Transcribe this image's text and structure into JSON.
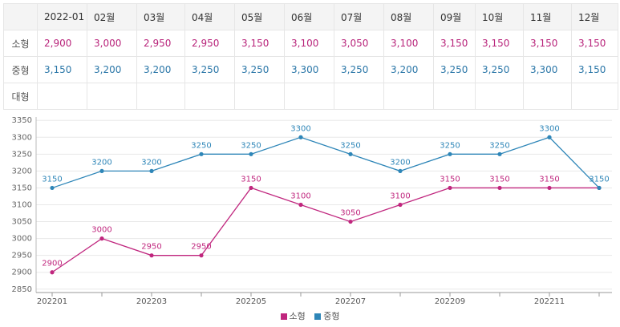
{
  "table": {
    "row_labels": [
      "소형",
      "중형",
      "대형"
    ],
    "left_months": [
      "2022-01",
      "02월",
      "03월",
      "04월"
    ],
    "right_months": [
      "05월",
      "06월",
      "07월",
      "08월",
      "09월",
      "10월",
      "11월",
      "12월"
    ],
    "small": [
      "2,900",
      "3,000",
      "2,950",
      "2,950",
      "3,150",
      "3,100",
      "3,050",
      "3,100",
      "3,150",
      "3,150",
      "3,150",
      "3,150"
    ],
    "medium": [
      "3,150",
      "3,200",
      "3,200",
      "3,250",
      "3,250",
      "3,300",
      "3,250",
      "3,200",
      "3,250",
      "3,250",
      "3,300",
      "3,150"
    ],
    "large": [
      "",
      "",
      "",
      "",
      "",
      "",
      "",
      "",
      "",
      "",
      "",
      ""
    ]
  },
  "chart_data": {
    "type": "line",
    "x": [
      "202201",
      "202202",
      "202203",
      "202204",
      "202205",
      "202206",
      "202207",
      "202208",
      "202209",
      "202210",
      "202211",
      "202212"
    ],
    "x_tick_labels": [
      "202201",
      "202203",
      "202205",
      "202207",
      "202209",
      "202211"
    ],
    "y_ticks": [
      2850,
      2900,
      2950,
      3000,
      3050,
      3100,
      3150,
      3200,
      3250,
      3300,
      3350
    ],
    "ylim": [
      2840,
      3360
    ],
    "grid": "horizontal",
    "legend_position": "bottom",
    "series": [
      {
        "name": "소형",
        "color": "#c0267e",
        "values": [
          2900,
          3000,
          2950,
          2950,
          3150,
          3100,
          3050,
          3100,
          3150,
          3150,
          3150,
          3150
        ],
        "labels": [
          "2900",
          "3000",
          "2950",
          "2950",
          "3150",
          "3100",
          "3050",
          "3100",
          "3150",
          "3150",
          "3150",
          ""
        ]
      },
      {
        "name": "중형",
        "color": "#2e86b8",
        "values": [
          3150,
          3200,
          3200,
          3250,
          3250,
          3300,
          3250,
          3200,
          3250,
          3250,
          3300,
          3150
        ],
        "labels": [
          "3150",
          "3200",
          "3200",
          "3250",
          "3250",
          "3300",
          "3250",
          "3200",
          "3250",
          "3250",
          "3300",
          "3150"
        ]
      }
    ]
  }
}
